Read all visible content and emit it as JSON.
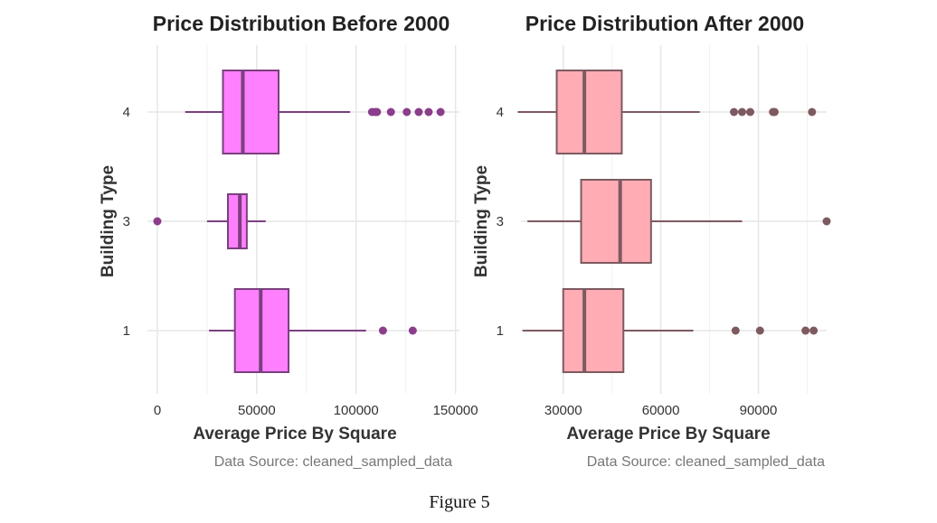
{
  "figure_caption": "Figure 5",
  "chart_data": [
    {
      "type": "boxplot",
      "title": "Price Distribution Before 2000",
      "xlabel": "Average Price By Square",
      "ylabel": "Building Type",
      "caption": "Data Source: cleaned_sampled_data",
      "xlim": [
        -5000,
        152000
      ],
      "xticks": [
        0,
        50000,
        100000,
        150000
      ],
      "xtick_labels": [
        "0",
        "50000",
        "100000",
        "150000"
      ],
      "categories": [
        "4",
        "3",
        "1"
      ],
      "fill_color": "#ff80ff",
      "line_color": "#7b3f7f",
      "outlier_color": "#8b3e8b",
      "grid": true,
      "boxes": [
        {
          "category": "4",
          "whisker_low": 14000,
          "q1": 33000,
          "median": 43000,
          "q3": 61000,
          "whisker_high": 97000,
          "outliers": [
            108000,
            109500,
            110500,
            117500,
            125500,
            131500,
            136500,
            142500
          ]
        },
        {
          "category": "3",
          "whisker_low": 25000,
          "q1": 35500,
          "median": 41500,
          "q3": 45000,
          "whisker_high": 54500,
          "outliers": [
            0
          ]
        },
        {
          "category": "1",
          "whisker_low": 26000,
          "q1": 39000,
          "median": 52000,
          "q3": 66000,
          "whisker_high": 105000,
          "outliers": [
            113500,
            128500
          ]
        }
      ]
    },
    {
      "type": "boxplot",
      "title": "Price Distribution After 2000",
      "xlabel": "Average Price By Square",
      "ylabel": "Building Type",
      "caption": "Data Source: cleaned_sampled_data",
      "xlim": [
        17000,
        111000
      ],
      "xticks": [
        30000,
        60000,
        90000
      ],
      "xtick_labels": [
        "30000",
        "60000",
        "90000"
      ],
      "categories": [
        "4",
        "3",
        "1"
      ],
      "fill_color": "#ffacb5",
      "line_color": "#7d5a60",
      "outlier_color": "#7d5a60",
      "grid": true,
      "boxes": [
        {
          "category": "4",
          "whisker_low": 16000,
          "q1": 28000,
          "median": 36500,
          "q3": 48000,
          "whisker_high": 72000,
          "outliers": [
            82500,
            85000,
            87500,
            94500,
            95000,
            106500
          ]
        },
        {
          "category": "3",
          "whisker_low": 19000,
          "q1": 35500,
          "median": 47500,
          "q3": 57000,
          "whisker_high": 85000,
          "outliers": [
            111000
          ]
        },
        {
          "category": "1",
          "whisker_low": 17500,
          "q1": 30000,
          "median": 36500,
          "q3": 48500,
          "whisker_high": 70000,
          "outliers": [
            83000,
            90500,
            104500,
            107000
          ]
        }
      ]
    }
  ]
}
